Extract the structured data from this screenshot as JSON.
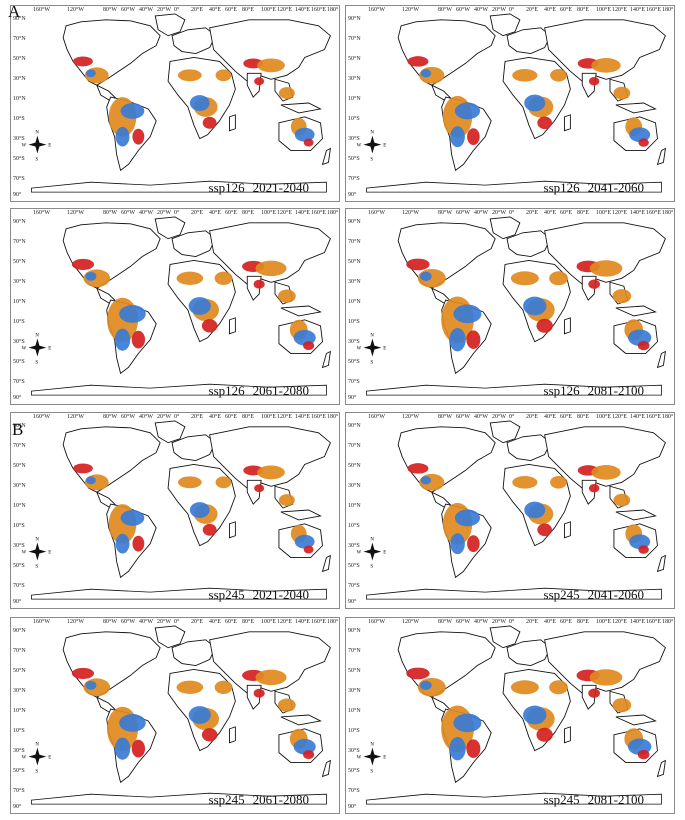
{
  "group_labels": [
    "A",
    "B"
  ],
  "longitude_ticks": [
    "160°W",
    "120°W",
    "80°W",
    "60°W",
    "40°W",
    "20°W",
    "0°",
    "20°E",
    "40°E",
    "60°E",
    "80°E",
    "100°E",
    "120°E",
    "140°E",
    "160°E",
    "180°"
  ],
  "latitude_ticks": [
    "90°N",
    "70°N",
    "50°N",
    "30°N",
    "10°N",
    "10°S",
    "30°S",
    "50°S",
    "70°S",
    "90°"
  ],
  "compass": {
    "n": "N",
    "s": "S",
    "e": "E",
    "w": "W"
  },
  "colors": {
    "blue": "#3a7bd5",
    "orange": "#e08a1e",
    "red": "#d42020",
    "outline": "#111111"
  },
  "panels": [
    {
      "scenario": "ssp126",
      "period": "2021-2040"
    },
    {
      "scenario": "ssp126",
      "period": "2041-2060"
    },
    {
      "scenario": "ssp126",
      "period": "2061-2080"
    },
    {
      "scenario": "ssp126",
      "period": "2081-2100"
    },
    {
      "scenario": "ssp245",
      "period": "2021-2040"
    },
    {
      "scenario": "ssp245",
      "period": "2041-2060"
    },
    {
      "scenario": "ssp245",
      "period": "2061-2080"
    },
    {
      "scenario": "ssp245",
      "period": "2081-2100"
    }
  ]
}
